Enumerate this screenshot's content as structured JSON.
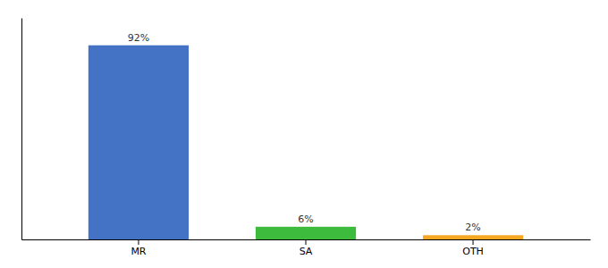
{
  "chart_data": {
    "type": "bar",
    "categories": [
      "MR",
      "SA",
      "OTH"
    ],
    "values": [
      92,
      6,
      2
    ],
    "value_labels": [
      "92%",
      "6%",
      "2%"
    ],
    "colors": [
      "#4472c4",
      "#3dbb3d",
      "#f5a623"
    ],
    "ylim": [
      0,
      105
    ],
    "data_labels": true,
    "tick_labels": "x"
  }
}
